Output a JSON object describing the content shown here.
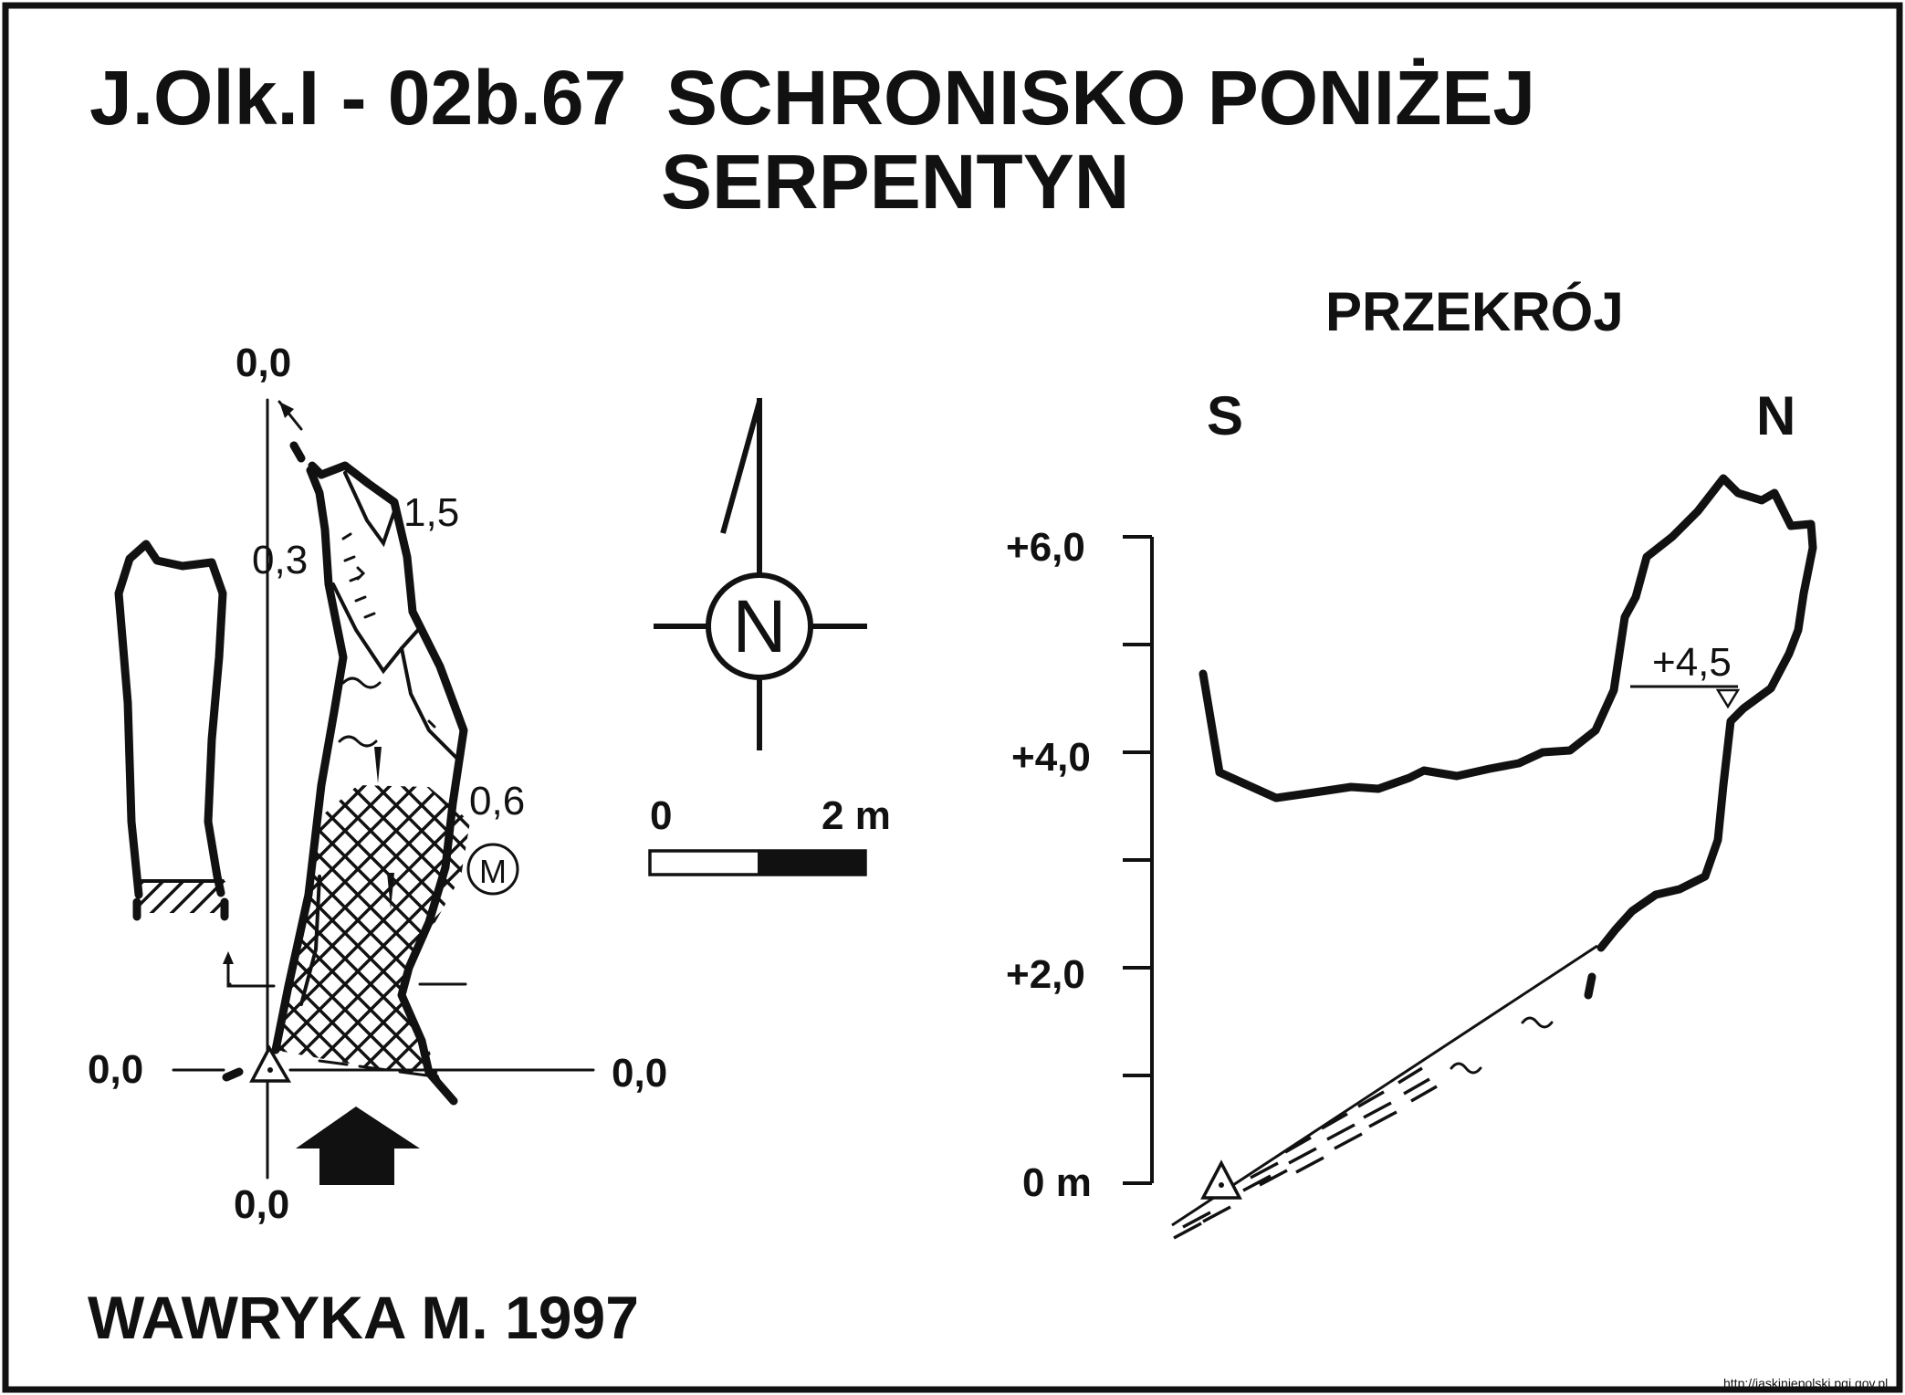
{
  "title": {
    "line1_code": "J.Olk.I - 02b.67",
    "line1_name": "SCHRONISKO PONIŻEJ",
    "line2_name": "SERPENTYN"
  },
  "plan": {
    "labels": {
      "top": "0,0",
      "left": "0,0",
      "right": "0,0",
      "bottom": "0,0",
      "height_1": "1,5",
      "height_2": "0,3",
      "height_3": "0,6",
      "marker": "M"
    }
  },
  "north_arrow": {
    "letter": "N"
  },
  "scale_bar": {
    "start": "0",
    "end": "2 m"
  },
  "section": {
    "title": "PRZEKRÓJ",
    "left_dir": "S",
    "right_dir": "N",
    "axis_labels": [
      "+6,0",
      "+4,0",
      "+2,0",
      "0 m"
    ],
    "level_label": "+4,5"
  },
  "author": "WAWRYKA M. 1997",
  "source": "http://jaskiniepolski.pgi.gov.pl"
}
